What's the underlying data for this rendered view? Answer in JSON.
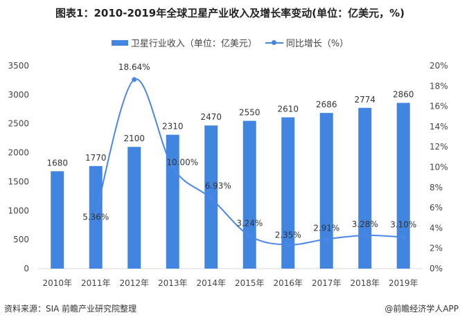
{
  "chart_data": {
    "type": "bar",
    "title": "图表1：2010-2019年全球卫星产业收入及增长率变动(单位：亿美元，%)",
    "categories": [
      "2010年",
      "2011年",
      "2012年",
      "2013年",
      "2014年",
      "2015年",
      "2016年",
      "2017年",
      "2018年",
      "2019年"
    ],
    "series": [
      {
        "name": "卫星行业收入（单位：亿美元）",
        "type": "bar",
        "axis": "left",
        "values": [
          1680,
          1770,
          2100,
          2310,
          2470,
          2550,
          2610,
          2686,
          2774,
          2860
        ],
        "labels": [
          "1680",
          "1770",
          "2100",
          "2310",
          "2470",
          "2550",
          "2610",
          "2686",
          "2774",
          "2860"
        ]
      },
      {
        "name": "同比增长（%）",
        "type": "line",
        "axis": "right",
        "values": [
          null,
          5.36,
          18.64,
          10.0,
          6.93,
          3.24,
          2.35,
          2.91,
          3.28,
          3.1
        ],
        "labels": [
          "",
          "5.36%",
          "18.64%",
          "10.00%",
          "6.93%",
          "3.24%",
          "2.35%",
          "2.91%",
          "3.28%",
          "3.10%"
        ]
      }
    ],
    "left_axis": {
      "ylim": [
        0,
        3500
      ],
      "ticks": [
        "0",
        "500",
        "1000",
        "1500",
        "2000",
        "2500",
        "3000",
        "3500"
      ]
    },
    "right_axis": {
      "ylim": [
        0,
        20
      ],
      "ticks": [
        "0%",
        "2%",
        "4%",
        "6%",
        "8%",
        "10%",
        "12%",
        "14%",
        "16%",
        "18%",
        "20%"
      ]
    },
    "grid": false,
    "legend_position": "top-center",
    "colors": {
      "bar": "#4285e0",
      "line": "#4a86e8"
    }
  },
  "footer": {
    "source": "资料来源：SIA 前瞻产业研究院整理",
    "credit": "@前瞻经济学人APP"
  }
}
